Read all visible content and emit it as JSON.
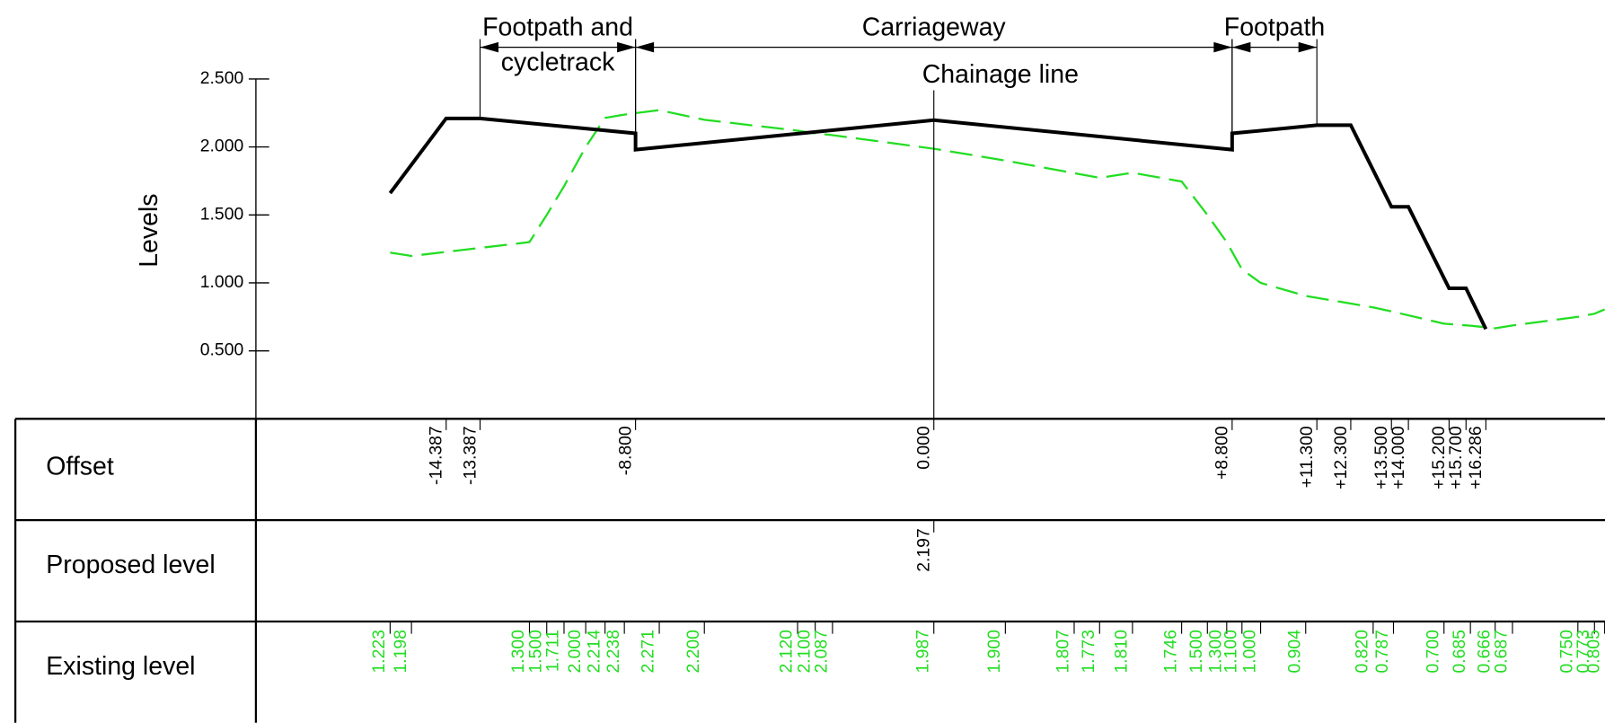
{
  "axis": {
    "label": "Levels",
    "ylim": [
      0,
      2.5
    ],
    "xlim": [
      -20,
      19.8
    ],
    "yticks": [
      {
        "value": 0.5,
        "label": "0.500"
      },
      {
        "value": 1,
        "label": "1.000"
      },
      {
        "value": 1.5,
        "label": "1.500"
      },
      {
        "value": 2,
        "label": "2.000"
      },
      {
        "value": 2.5,
        "label": "2.500"
      }
    ]
  },
  "dimensions": [
    {
      "label_lines": [
        "Footpath and",
        "cycletrack"
      ],
      "from": -13.387,
      "to": -8.8
    },
    {
      "label_lines": [
        "Carriageway"
      ],
      "from": -8.8,
      "to": 8.8
    },
    {
      "label_lines": [
        "Footpath"
      ],
      "from": 8.8,
      "to": 11.3
    }
  ],
  "chainage_line": {
    "label": "Chainage line",
    "offset": 0
  },
  "proposed": {
    "color": "#000000",
    "x": [
      -16.04,
      -14.387,
      -13.387,
      -8.8,
      -8.8,
      0,
      8.8,
      8.8,
      11.3,
      12.3,
      13.5,
      14,
      15.2,
      15.7,
      16.286
    ],
    "values": [
      1.66,
      2.21,
      2.21,
      2.1,
      1.98,
      2.197,
      1.98,
      2.1,
      2.16,
      2.16,
      1.56,
      1.56,
      0.96,
      0.96,
      0.66
    ]
  },
  "existing": {
    "color": "#22dd22",
    "x": [
      -16.04,
      -15.41,
      -11.93,
      -11.42,
      -10.91,
      -10.27,
      -9.7,
      -9.13,
      -8.1,
      -6.77,
      -4.02,
      -3.5,
      -2.99,
      0,
      2.11,
      4.14,
      4.89,
      5.86,
      7.31,
      8.07,
      8.64,
      9.09,
      9.64,
      10.97,
      12.96,
      13.56,
      15.05,
      15.83,
      16.56,
      17.07,
      19,
      19.49,
      19.79
    ],
    "values": [
      1.223,
      1.198,
      1.3,
      1.5,
      1.711,
      2,
      2.214,
      2.238,
      2.271,
      2.2,
      2.12,
      2.1,
      2.087,
      1.987,
      1.9,
      1.807,
      1.773,
      1.81,
      1.746,
      1.5,
      1.3,
      1.1,
      1,
      0.904,
      0.82,
      0.787,
      0.7,
      0.685,
      0.666,
      0.687,
      0.75,
      0.773,
      0.805
    ],
    "value_labels": [
      "1.223",
      "1.198",
      "1.300",
      "1.500",
      "1.711",
      "2.000",
      "2.214",
      "2.238",
      "2.271",
      "2.200",
      "2.120",
      "2.100",
      "2.087",
      "1.987",
      "1.900",
      "1.807",
      "1.773",
      "1.810",
      "1.746",
      "1.500",
      "1.300",
      "1.100",
      "1.000",
      "0.904",
      "0.820",
      "0.787",
      "0.700",
      "0.685",
      "0.666",
      "0.687",
      "0.750",
      "0.773",
      "0.805"
    ]
  },
  "table": {
    "rows": [
      "Offset",
      "Proposed level",
      "Existing level"
    ],
    "offsets": [
      {
        "value": -14.387,
        "label": "-14.387"
      },
      {
        "value": -13.387,
        "label": "-13.387"
      },
      {
        "value": -8.8,
        "label": "-8.800"
      },
      {
        "value": 0,
        "label": "0.000"
      },
      {
        "value": 8.8,
        "label": "+8.800"
      },
      {
        "value": 11.3,
        "label": "+11.300"
      },
      {
        "value": 12.3,
        "label": "+12.300"
      },
      {
        "value": 13.5,
        "label": "+13.500"
      },
      {
        "value": 14,
        "label": "+14.000"
      },
      {
        "value": 15.2,
        "label": "+15.200"
      },
      {
        "value": 15.7,
        "label": "+15.700"
      },
      {
        "value": 16.286,
        "label": "+16.286"
      }
    ],
    "proposed_levels": [
      {
        "offset": 0,
        "value": 2.197,
        "label": "2.197"
      }
    ]
  }
}
